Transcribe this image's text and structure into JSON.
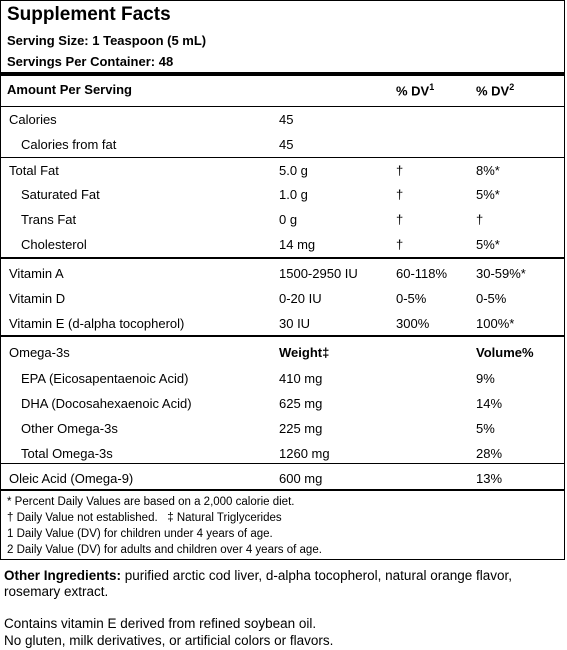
{
  "title": "Supplement Facts",
  "serving_size": "Serving Size: 1 Teaspoon (5 mL)",
  "servings_per_container": "Servings Per Container: 48",
  "table": {
    "header": {
      "label": "Amount Per Serving",
      "dv1": "% DV",
      "dv1_sup": "1",
      "dv2": "% DV",
      "dv2_sup": "2"
    },
    "rows": [
      [
        "Calories",
        "45"
      ],
      [
        "Calories from fat",
        "45"
      ],
      [
        "Total Fat",
        "5.0 g",
        "†",
        "8%*"
      ],
      [
        "Saturated Fat",
        "1.0 g",
        "†",
        "5%*"
      ],
      [
        "Trans Fat",
        "0 g",
        "†",
        "†"
      ],
      [
        "Cholesterol",
        "14 mg",
        "†",
        "5%*"
      ],
      [
        "Vitamin A",
        "1500-2950 IU",
        "60-118%",
        "30-59%*"
      ],
      [
        "Vitamin D",
        "0-20 IU",
        "0-5%",
        "0-5%"
      ],
      [
        "Vitamin E (d-alpha tocopherol)",
        "30 IU",
        "300%",
        "100%*"
      ],
      [
        "Omega-3s",
        "Weight‡",
        "Volume%"
      ],
      [
        "EPA (Eicosapentaenoic Acid)",
        "410 mg",
        "9%"
      ],
      [
        "DHA (Docosahexaenoic Acid)",
        "625 mg",
        "14%"
      ],
      [
        "Other Omega-3s",
        "225 mg",
        "5%"
      ],
      [
        "Total Omega-3s",
        "1260 mg",
        "28%"
      ],
      [
        "Oleic Acid (Omega-9)",
        "600 mg",
        "13%"
      ]
    ]
  },
  "footnotes": [
    "* Percent Daily Values are based on a 2,000 calorie diet.",
    "† Daily Value not established.   ‡ Natural Triglycerides",
    "1 Daily Value (DV) for children under 4 years of age.",
    "2 Daily Value (DV) for adults and children over 4 years of age."
  ],
  "other_ingredients": {
    "label": "Other Ingredients:",
    "text": "purified arctic cod liver, d-alpha tocopherol, natural orange flavor, rosemary extract."
  },
  "notes": [
    "Contains vitamin E derived from refined soybean oil.",
    "No gluten, milk derivatives, or artificial colors or flavors."
  ]
}
